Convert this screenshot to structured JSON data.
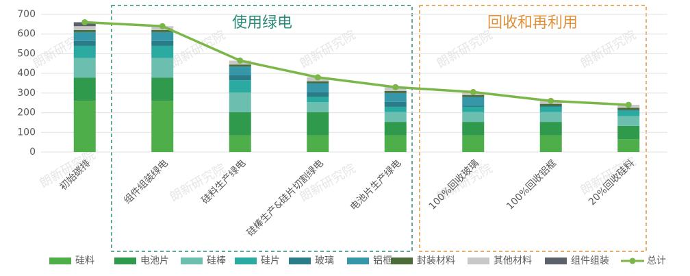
{
  "chart_data": {
    "type": "bar",
    "stacked": true,
    "categories": [
      "初始碳排",
      "组件组装绿电",
      "硅料生产绿电",
      "硅棒生产&硅片切割绿电",
      "电池片生产绿电",
      "100%回收玻璃",
      "100%回收铝框",
      "20%回收硅料"
    ],
    "series": [
      {
        "name": "硅料",
        "color": "#4dae4a",
        "values": [
          260,
          260,
          85,
          85,
          85,
          85,
          85,
          65
        ]
      },
      {
        "name": "电池片",
        "color": "#2f9a4c",
        "values": [
          118,
          118,
          118,
          118,
          68,
          68,
          68,
          68
        ]
      },
      {
        "name": "硅棒",
        "color": "#6cbfae",
        "values": [
          100,
          100,
          100,
          50,
          50,
          50,
          50,
          50
        ]
      },
      {
        "name": "硅片",
        "color": "#2aaaa0",
        "values": [
          62,
          62,
          62,
          27,
          27,
          27,
          27,
          27
        ]
      },
      {
        "name": "玻璃",
        "color": "#2a7d88",
        "values": [
          25,
          25,
          25,
          25,
          25,
          5,
          5,
          5
        ]
      },
      {
        "name": "铝框",
        "color": "#3597a8",
        "values": [
          45,
          45,
          45,
          45,
          45,
          45,
          0,
          0
        ]
      },
      {
        "name": "封装材料",
        "color": "#4b6b38",
        "values": [
          10,
          10,
          10,
          10,
          10,
          10,
          10,
          10
        ]
      },
      {
        "name": "其他材料",
        "color": "#c8c8c8",
        "values": [
          20,
          20,
          20,
          20,
          20,
          15,
          15,
          15
        ]
      },
      {
        "name": "组件组装",
        "color": "#5b6169",
        "values": [
          20,
          0,
          0,
          0,
          0,
          0,
          0,
          0
        ]
      },
      {
        "name": "总计",
        "type": "line",
        "color": "#7ab648",
        "values": [
          660,
          640,
          465,
          380,
          330,
          305,
          260,
          240
        ]
      }
    ],
    "ylim": [
      0,
      700
    ],
    "yticks": [
      0,
      100,
      200,
      300,
      400,
      500,
      600,
      700
    ],
    "grid": true,
    "annotations": [
      "使用绿电",
      "回收和再利用"
    ],
    "watermark": "朗新研究院"
  }
}
